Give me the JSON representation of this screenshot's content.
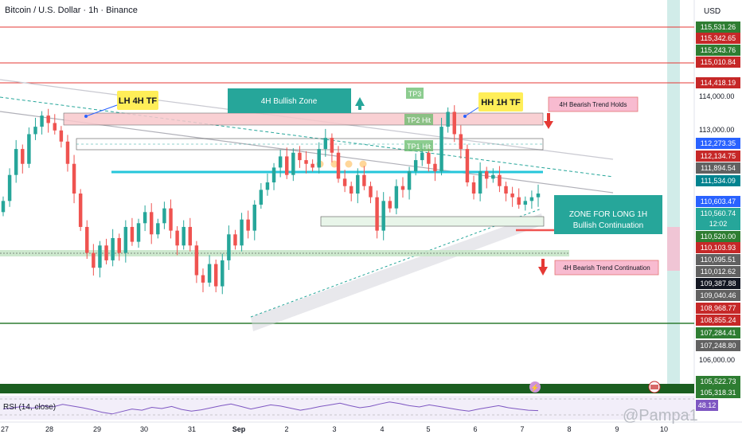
{
  "header": {
    "symbol": "Bitcoin / U.S. Dollar · 1h · Binance",
    "currency": "USD"
  },
  "watermark": "@Pampa1",
  "chart_data": {
    "type": "candlestick",
    "x_axis": {
      "labels": [
        "27",
        "28",
        "29",
        "30",
        "31",
        "Sep",
        "2",
        "3",
        "4",
        "5",
        "6",
        "7",
        "8",
        "9",
        "10"
      ]
    },
    "y_axis": {
      "range": [
        105250,
        115700
      ],
      "ticks": [
        "114,000.00",
        "113,000.00",
        "106,000.00"
      ]
    },
    "price_labels": [
      {
        "text": "115,531.26",
        "bg": "#2e7d32"
      },
      {
        "text": "115,342.65",
        "bg": "#c62828"
      },
      {
        "text": "115,243.76",
        "bg": "#2e7d32"
      },
      {
        "text": "115,010.84",
        "bg": "#c62828"
      },
      {
        "text": "114,418.19",
        "bg": "#c62828"
      },
      {
        "text": "112,273.35",
        "bg": "#2962ff"
      },
      {
        "text": "112,134.75",
        "bg": "#c62828"
      },
      {
        "text": "111,894.54",
        "bg": "#616161"
      },
      {
        "text": "111,534.09",
        "bg": "#00838f"
      },
      {
        "text": "110,603.47",
        "bg": "#2962ff"
      },
      {
        "text": "110,560.74",
        "bg": "#26a69a",
        "sub": "12:02"
      },
      {
        "text": "110,520.00",
        "bg": "#2e7d32"
      },
      {
        "text": "110,103.93",
        "bg": "#c62828"
      },
      {
        "text": "110,095.51",
        "bg": "#616161"
      },
      {
        "text": "110,012.62",
        "bg": "#616161"
      },
      {
        "text": "109,387.88",
        "bg": "#131722"
      },
      {
        "text": "109,040.46",
        "bg": "#616161"
      },
      {
        "text": "108,968.77",
        "bg": "#c62828"
      },
      {
        "text": "108,855.24",
        "bg": "#c62828"
      },
      {
        "text": "107,284.41",
        "bg": "#2e7d32"
      },
      {
        "text": "107,248.80",
        "bg": "#616161"
      },
      {
        "text": "105,522.73",
        "bg": "#2e7d32"
      },
      {
        "text": "105,318.31",
        "bg": "#2e7d32"
      }
    ],
    "annotations": [
      {
        "text": "LH 4H TF",
        "style": "yellow"
      },
      {
        "text": "HH 1H TF",
        "style": "yellow"
      },
      {
        "text": "4H Bullish Zone",
        "style": "teal"
      },
      {
        "text": "TP3",
        "style": "tp"
      },
      {
        "text": "TP2 Hit",
        "style": "tp"
      },
      {
        "text": "TP1 Hit",
        "style": "tp"
      },
      {
        "text": "4H Bearish Trend Holds",
        "style": "pink"
      },
      {
        "text": "ZONE FOR LONG 1H",
        "style": "teal-big"
      },
      {
        "text": "Bullish Continuation",
        "style": "teal-big"
      },
      {
        "text": "4H Bearish Trend Continuation",
        "style": "pink"
      }
    ],
    "series": [
      {
        "name": "BTCUSD 1h",
        "values": [
          110500,
          111200,
          111900,
          111500,
          112300,
          112500,
          112800,
          112600,
          112400,
          112100,
          111500,
          110700,
          109800,
          109100,
          108700,
          109300,
          108900,
          109500,
          109100,
          109800,
          109400,
          109900,
          110200,
          109600,
          109900,
          110300,
          109700,
          109300,
          109800,
          109300,
          108500,
          108300,
          108800,
          108200,
          108900,
          109600,
          109300,
          110000,
          109700,
          110400,
          110800,
          111000,
          111400,
          111700,
          111200,
          111800,
          111600,
          111500,
          111400,
          111900,
          112200,
          111800,
          111100,
          110900,
          110700,
          111200,
          110900,
          110600,
          109700,
          110500,
          110300,
          110900,
          110800,
          111300,
          111600,
          111800,
          111500,
          111300,
          112500,
          112900,
          112300,
          111900,
          111000,
          110700,
          111300,
          111100,
          111200,
          110900,
          110700,
          110600,
          110400,
          110500,
          110600,
          110700
        ]
      },
      {
        "name": "RSI (14, close)",
        "values": [
          52,
          55,
          58,
          54,
          60,
          57,
          63,
          59,
          55,
          50,
          44,
          40,
          46,
          52,
          49,
          56,
          53,
          58,
          51,
          47,
          50,
          55,
          60,
          64,
          58,
          52,
          57,
          62,
          59,
          54,
          49,
          53,
          58,
          62,
          66,
          60,
          55,
          58,
          64,
          69,
          65,
          60,
          57,
          62,
          58,
          54,
          50,
          47,
          52,
          56,
          60,
          55,
          52,
          49,
          48.12
        ]
      }
    ],
    "rsi_label": "RSI (14, close)",
    "rsi_value": "48.12"
  }
}
